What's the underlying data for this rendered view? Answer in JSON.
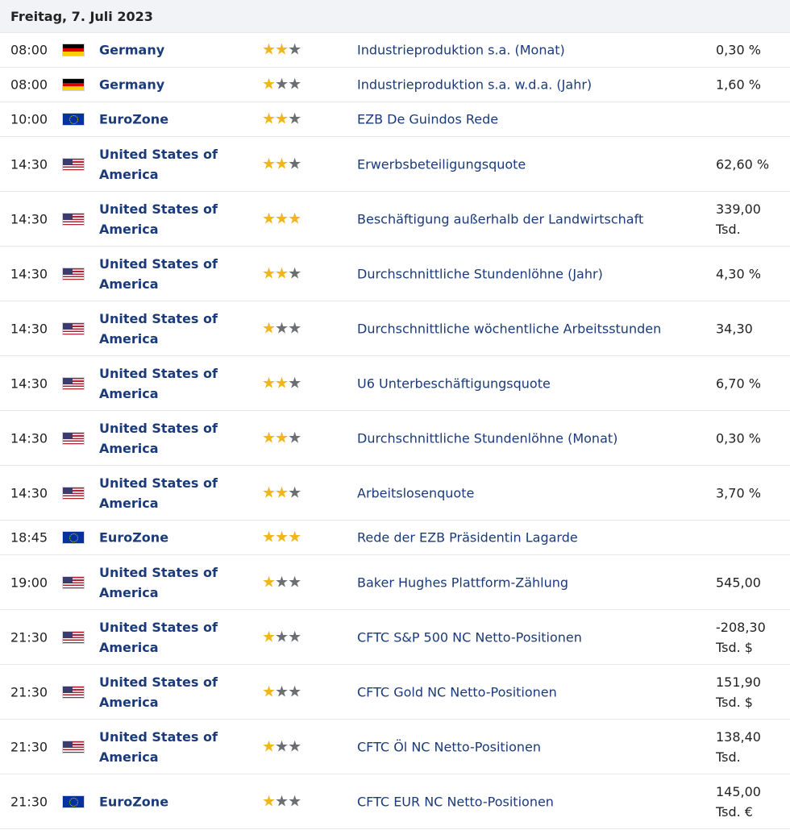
{
  "header": {
    "date": "Freitag, 7. Juli 2023"
  },
  "rows": [
    {
      "time": "08:00",
      "flag": "de",
      "country": "Germany",
      "stars": 2,
      "event": "Industrieproduktion s.a. (Monat)",
      "value_line1": "0,30 %",
      "value_line2": ""
    },
    {
      "time": "08:00",
      "flag": "de",
      "country": "Germany",
      "stars": 1,
      "event": "Industrieproduktion s.a. w.d.a. (Jahr)",
      "value_line1": "1,60 %",
      "value_line2": ""
    },
    {
      "time": "10:00",
      "flag": "eu",
      "country": "EuroZone",
      "stars": 2,
      "event": "EZB De Guindos Rede",
      "value_line1": "",
      "value_line2": ""
    },
    {
      "time": "14:30",
      "flag": "us",
      "country": "United States of America",
      "stars": 2,
      "event": "Erwerbsbeteiligungsquote",
      "value_line1": "62,60 %",
      "value_line2": ""
    },
    {
      "time": "14:30",
      "flag": "us",
      "country": "United States of America",
      "stars": 3,
      "event": "Beschäftigung außerhalb der Landwirtschaft",
      "value_line1": "339,00",
      "value_line2": "Tsd."
    },
    {
      "time": "14:30",
      "flag": "us",
      "country": "United States of America",
      "stars": 2,
      "event": "Durchschnittliche Stundenlöhne (Jahr)",
      "value_line1": "4,30 %",
      "value_line2": ""
    },
    {
      "time": "14:30",
      "flag": "us",
      "country": "United States of America",
      "stars": 1,
      "event": "Durchschnittliche wöchentliche Arbeitsstunden",
      "value_line1": "34,30",
      "value_line2": ""
    },
    {
      "time": "14:30",
      "flag": "us",
      "country": "United States of America",
      "stars": 2,
      "event": "U6 Unterbeschäftigungsquote",
      "value_line1": "6,70 %",
      "value_line2": ""
    },
    {
      "time": "14:30",
      "flag": "us",
      "country": "United States of America",
      "stars": 2,
      "event": "Durchschnittliche Stundenlöhne (Monat)",
      "value_line1": "0,30 %",
      "value_line2": ""
    },
    {
      "time": "14:30",
      "flag": "us",
      "country": "United States of America",
      "stars": 2,
      "event": "Arbeitslosenquote",
      "value_line1": "3,70 %",
      "value_line2": ""
    },
    {
      "time": "18:45",
      "flag": "eu",
      "country": "EuroZone",
      "stars": 3,
      "event": "Rede der EZB Präsidentin Lagarde",
      "value_line1": "",
      "value_line2": ""
    },
    {
      "time": "19:00",
      "flag": "us",
      "country": "United States of America",
      "stars": 1,
      "event": "Baker Hughes Plattform-Zählung",
      "value_line1": "545,00",
      "value_line2": ""
    },
    {
      "time": "21:30",
      "flag": "us",
      "country": "United States of America",
      "stars": 1,
      "event": "CFTC S&P 500 NC Netto-Positionen",
      "value_line1": "-208,30",
      "value_line2": "Tsd. $"
    },
    {
      "time": "21:30",
      "flag": "us",
      "country": "United States of America",
      "stars": 1,
      "event": "CFTC Gold NC Netto-Positionen",
      "value_line1": "151,90",
      "value_line2": "Tsd. $"
    },
    {
      "time": "21:30",
      "flag": "us",
      "country": "United States of America",
      "stars": 1,
      "event": "CFTC Öl NC Netto-Positionen",
      "value_line1": "138,40",
      "value_line2": "Tsd."
    },
    {
      "time": "21:30",
      "flag": "eu",
      "country": "EuroZone",
      "stars": 1,
      "event": "CFTC EUR NC Netto-Positionen",
      "value_line1": "145,00",
      "value_line2": "Tsd. €"
    }
  ]
}
